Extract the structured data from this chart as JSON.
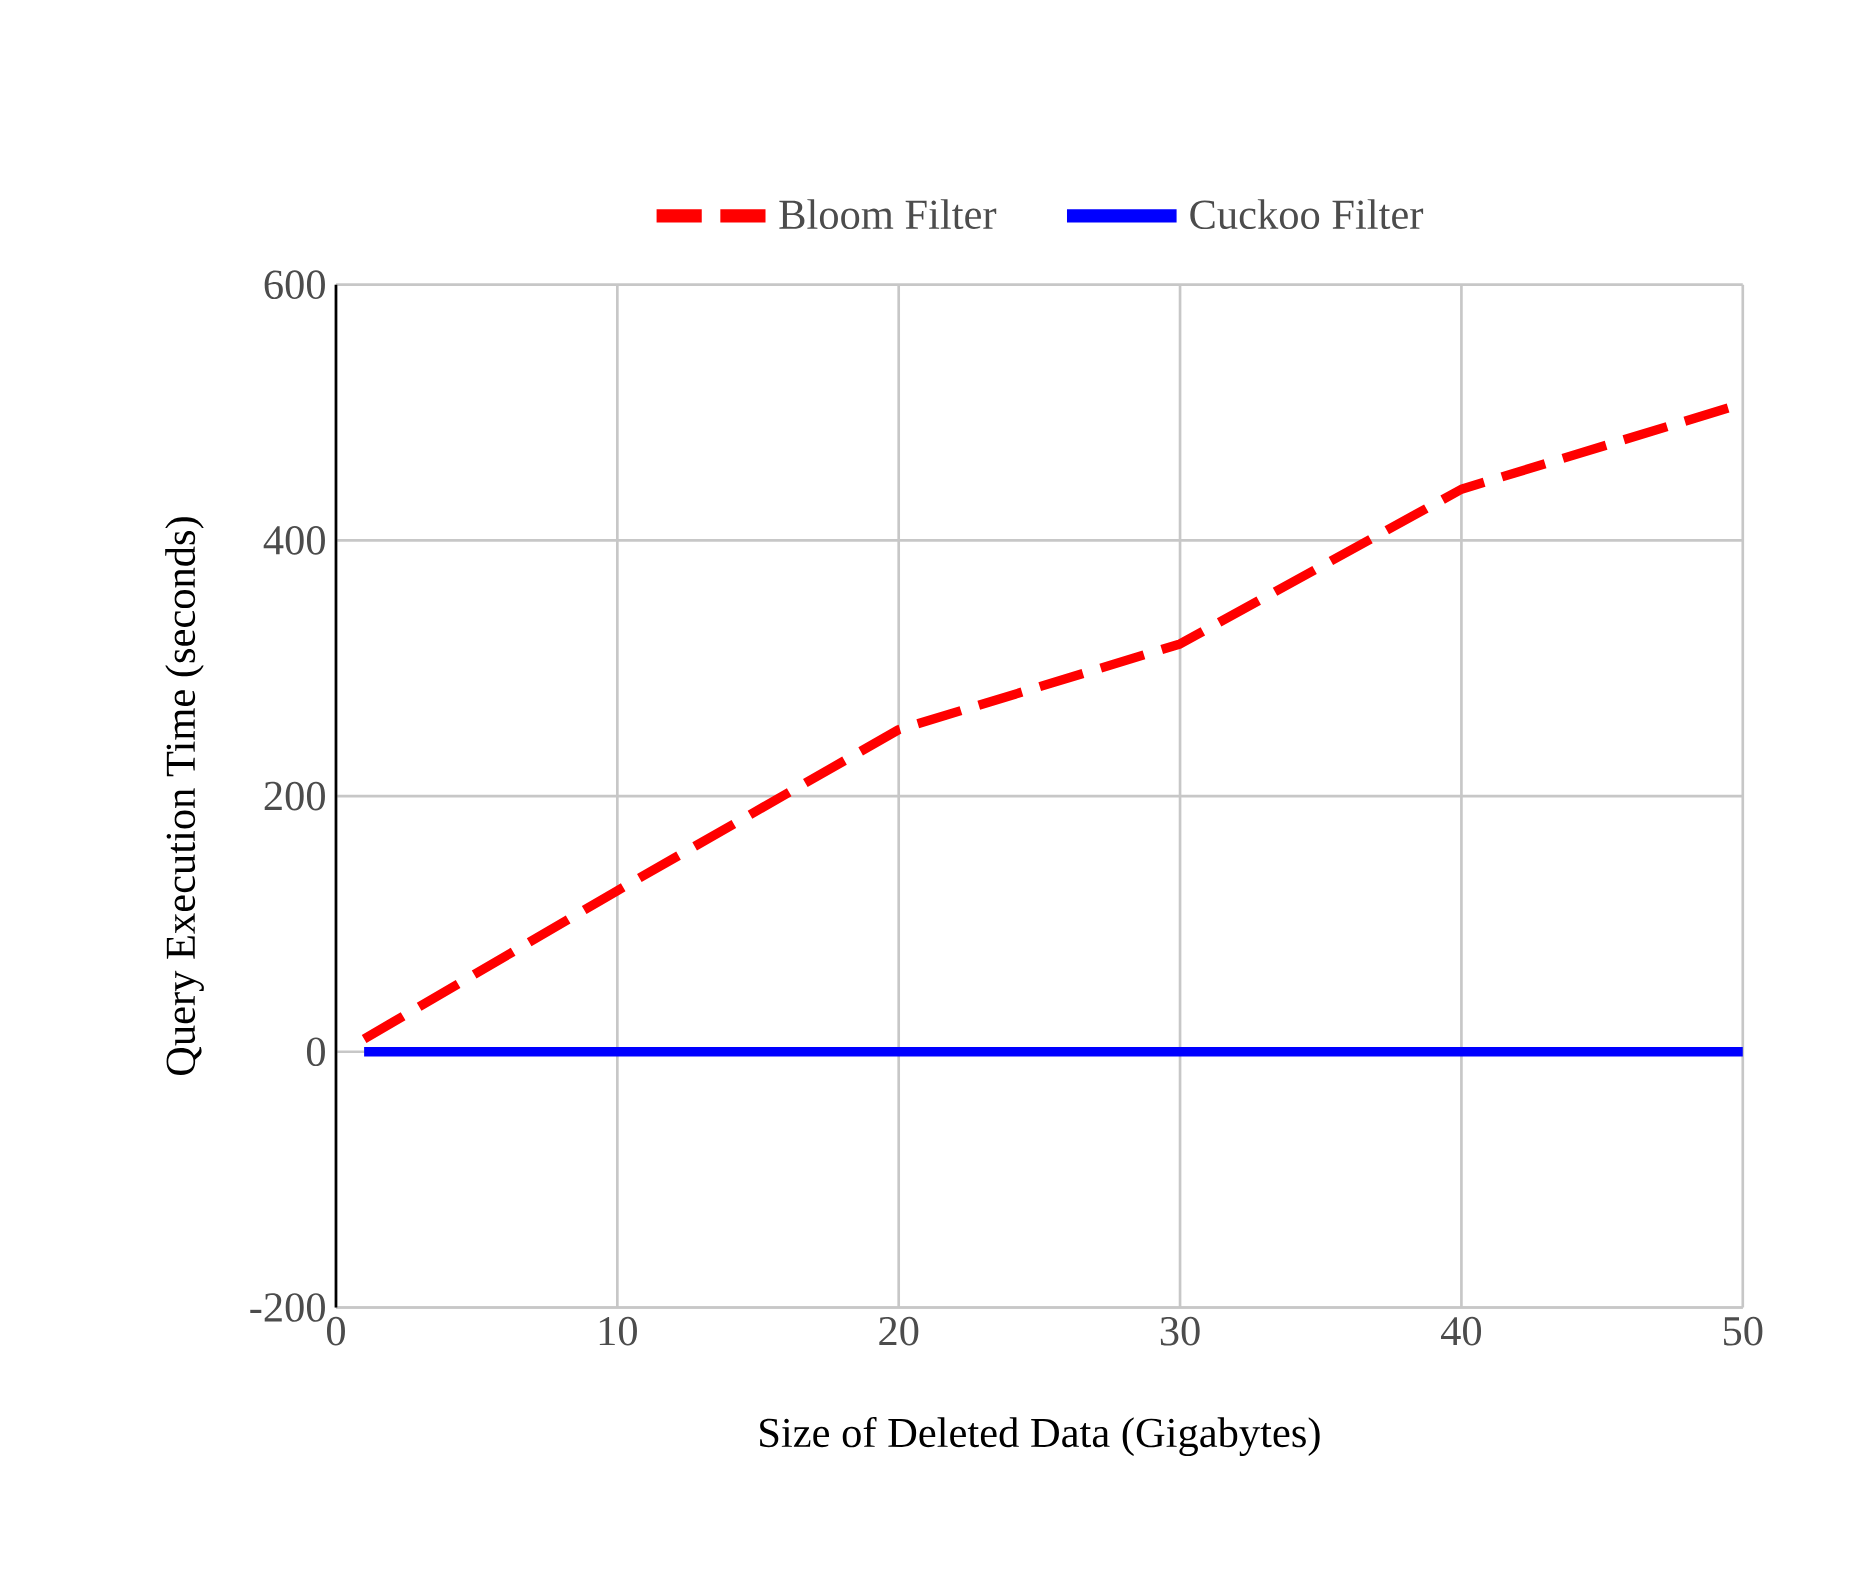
{
  "chart_data": {
    "type": "line",
    "xlabel": "Size of Deleted Data (Gigabytes)",
    "ylabel": "Query Execution Time (seconds)",
    "x": [
      1,
      10,
      20,
      30,
      40,
      50
    ],
    "series": [
      {
        "name": "Bloom Filter",
        "color": "#ff0000",
        "line_style": "dashed",
        "values": [
          10,
          126,
          252,
          319,
          440,
          507
        ]
      },
      {
        "name": "Cuckoo Filter",
        "color": "#0000ff",
        "line_style": "solid",
        "values": [
          0,
          0,
          0,
          0,
          0,
          0
        ]
      }
    ],
    "xlim": [
      0,
      50
    ],
    "ylim": [
      -200,
      600
    ],
    "xticks": [
      0,
      10,
      20,
      30,
      40,
      50
    ],
    "yticks": [
      -200,
      0,
      200,
      400,
      600
    ],
    "grid": true,
    "legend": "top",
    "marker": "none"
  }
}
